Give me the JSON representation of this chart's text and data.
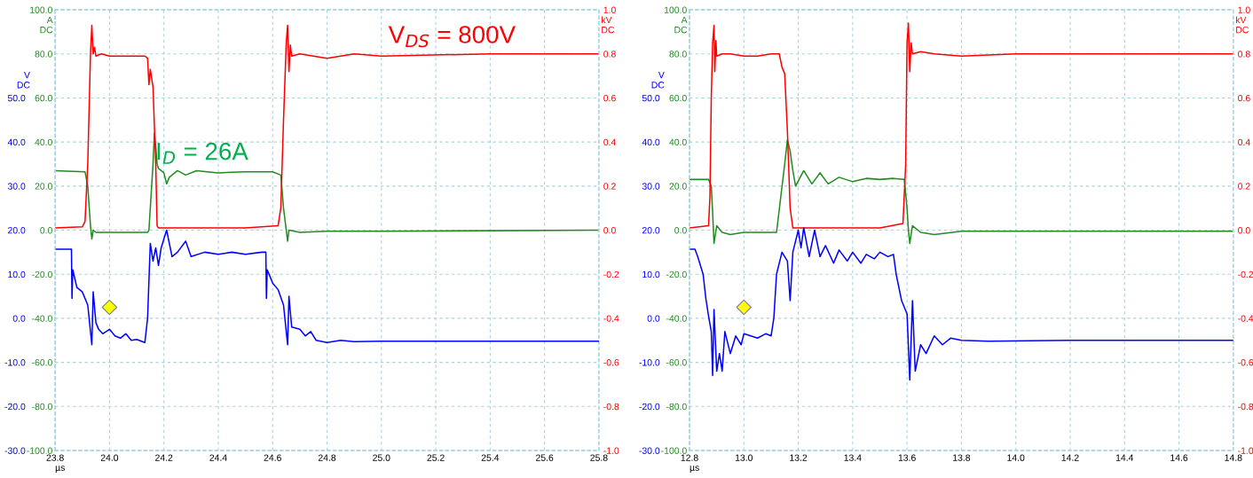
{
  "chart_data": [
    {
      "type": "line",
      "xlim": [
        23.8,
        25.8
      ],
      "xticks": [
        23.8,
        {
          "value": 24,
          "label": "24.0"
        },
        24.2,
        24.4,
        24.6,
        24.8,
        {
          "value": 25,
          "label": "25.0"
        },
        25.2,
        25.4,
        25.6,
        25.8
      ],
      "xlabel": "µs",
      "ylim": [
        -100,
        100
      ],
      "yticks": [
        {
          "value": -100,
          "label": "-100.0"
        },
        {
          "value": -80,
          "label": "-80.0"
        },
        {
          "value": -60,
          "label": "-60.0"
        },
        {
          "value": -40,
          "label": "-40.0"
        },
        {
          "value": -20,
          "label": "-20.0"
        },
        {
          "value": 0,
          "label": "0.0"
        },
        {
          "value": 20,
          "label": "20.0"
        },
        {
          "value": 40,
          "label": "40.0"
        },
        {
          "value": 60,
          "label": "60.0"
        },
        {
          "value": 80,
          "label": "80.0"
        },
        {
          "value": 100,
          "label": "100.0"
        }
      ],
      "ylabel": "A\nDC",
      "y2lim": [
        -1,
        1
      ],
      "y2ticks": [
        {
          "value": -1,
          "label": "-1.0"
        },
        -0.8,
        -0.6,
        -0.4,
        -0.2,
        {
          "value": 0,
          "label": "0.0"
        },
        0.2,
        0.4,
        0.6,
        0.8,
        {
          "value": 1,
          "label": "1.0"
        }
      ],
      "y2label": "kV\nDC",
      "y3lim": [
        -30,
        70
      ],
      "y3ticks": [
        {
          "value": -30,
          "label": "-30.0"
        },
        {
          "value": -20,
          "label": "-20.0"
        },
        {
          "value": -10,
          "label": "-10.0"
        },
        {
          "value": 0,
          "label": "0.0"
        },
        {
          "value": 10,
          "label": "10.0"
        },
        {
          "value": 20,
          "label": "20.0"
        },
        {
          "value": 30,
          "label": "30.0"
        },
        {
          "value": 40,
          "label": "40.0"
        },
        {
          "value": 50,
          "label": "50.0"
        }
      ],
      "y3label": "V\nDC",
      "grid": true,
      "legend": false,
      "annotations": [
        "V$_{DS}$ = 800V",
        "I$_{D}$ = 26A"
      ],
      "series": [
        {
          "color": "#ff0000",
          "axis": "y2",
          "x": [
            23.8,
            23.9,
            23.91,
            23.92,
            23.93,
            23.935,
            23.94,
            23.945,
            23.95,
            23.97,
            24.0,
            24.05,
            24.1,
            24.13,
            24.14,
            24.145,
            24.15,
            24.16,
            24.17,
            24.175,
            24.18,
            24.3,
            24.5,
            24.62,
            24.63,
            24.64,
            24.65,
            24.655,
            24.66,
            24.665,
            24.67,
            24.7,
            24.75,
            24.8,
            24.9,
            25.0,
            25.4,
            25.8
          ],
          "values": [
            0.01,
            0.015,
            0.04,
            0.3,
            0.8,
            0.93,
            0.8,
            0.83,
            0.79,
            0.8,
            0.79,
            0.79,
            0.79,
            0.79,
            0.78,
            0.66,
            0.73,
            0.65,
            0.3,
            0.02,
            0.01,
            0.01,
            0.01,
            0.02,
            0.1,
            0.5,
            0.85,
            0.93,
            0.72,
            0.84,
            0.79,
            0.8,
            0.79,
            0.78,
            0.8,
            0.79,
            0.8,
            0.8
          ]
        },
        {
          "color": "#228b22",
          "axis": "y",
          "x": [
            23.8,
            23.91,
            23.92,
            23.93,
            23.935,
            23.94,
            23.95,
            24.0,
            24.1,
            24.14,
            24.145,
            24.16,
            24.165,
            24.17,
            24.175,
            24.18,
            24.2,
            24.21,
            24.22,
            24.25,
            24.28,
            24.32,
            24.4,
            24.5,
            24.6,
            24.63,
            24.64,
            24.65,
            24.655,
            24.66,
            24.7,
            24.8,
            25.0,
            25.8
          ],
          "values": [
            27,
            26.5,
            20,
            2,
            -4,
            0,
            -1,
            -1,
            -1,
            -1,
            0,
            30,
            44,
            38,
            30,
            28,
            26,
            21,
            24,
            27,
            25,
            27,
            26,
            26.5,
            26.5,
            25,
            10,
            0,
            -5,
            0,
            -1,
            -0.5,
            -0.5,
            0
          ]
        },
        {
          "color": "#0000ff",
          "axis": "y3",
          "x": [
            23.8,
            23.86,
            23.862,
            23.865,
            23.88,
            23.9,
            23.92,
            23.935,
            23.94,
            23.95,
            23.96,
            23.975,
            24.0,
            24.02,
            24.04,
            24.06,
            24.08,
            24.1,
            24.13,
            24.14,
            24.15,
            24.16,
            24.17,
            24.18,
            24.19,
            24.21,
            24.23,
            24.25,
            24.28,
            24.3,
            24.35,
            24.4,
            24.45,
            24.5,
            24.56,
            24.575,
            24.577,
            24.58,
            24.6,
            24.62,
            24.64,
            24.655,
            24.66,
            24.67,
            24.7,
            24.72,
            24.74,
            24.76,
            24.8,
            24.85,
            24.9,
            25.0,
            25.4,
            25.8
          ],
          "values": [
            15.7,
            15.7,
            4.5,
            11,
            7,
            6,
            3,
            -6,
            6,
            -1,
            -2.5,
            -3.5,
            -2.5,
            -4,
            -4.5,
            -3.5,
            -5,
            -4.8,
            -5.5,
            0,
            17,
            13,
            16,
            12,
            16,
            20,
            14,
            15,
            17.5,
            14,
            15,
            14.5,
            15,
            14.5,
            15,
            15,
            4.5,
            11,
            8,
            6.5,
            3,
            -6,
            5,
            -2,
            -2.5,
            -4,
            -3,
            -5,
            -5.5,
            -5,
            -5.3,
            -5.2,
            -5.2,
            -5.2
          ]
        },
        {
          "type": "scatter",
          "marker": "diamond",
          "color": "#ffff00",
          "axis": "y3",
          "x": [
            24.0
          ],
          "values": [
            2.5
          ]
        }
      ]
    },
    {
      "type": "line",
      "xlim": [
        12.8,
        14.8
      ],
      "xticks": [
        12.8,
        {
          "value": 13,
          "label": "13.0"
        },
        13.2,
        13.4,
        13.6,
        13.8,
        {
          "value": 14,
          "label": "14.0"
        },
        14.2,
        14.4,
        14.6,
        14.8
      ],
      "xlabel": "µs",
      "ylim": [
        -100,
        100
      ],
      "yticks": [
        {
          "value": -100,
          "label": "-100.0"
        },
        {
          "value": -80,
          "label": "-80.0"
        },
        {
          "value": -60,
          "label": "-60.0"
        },
        {
          "value": -40,
          "label": "-40.0"
        },
        {
          "value": -20,
          "label": "-20.0"
        },
        {
          "value": 0,
          "label": "0.0"
        },
        {
          "value": 20,
          "label": "20.0"
        },
        {
          "value": 40,
          "label": "40.0"
        },
        {
          "value": 60,
          "label": "60.0"
        },
        {
          "value": 80,
          "label": "80.0"
        },
        {
          "value": 100,
          "label": "100.0"
        }
      ],
      "ylabel": "A\nDC",
      "y2lim": [
        -1,
        1
      ],
      "y2ticks": [
        {
          "value": -1,
          "label": "-1.0"
        },
        -0.8,
        -0.6,
        -0.4,
        -0.2,
        {
          "value": 0,
          "label": "0.0"
        },
        0.2,
        0.4,
        0.6,
        0.8,
        {
          "value": 1,
          "label": "1.0"
        }
      ],
      "y2label": "kV\nDC",
      "y3lim": [
        -30,
        70
      ],
      "y3ticks": [
        {
          "value": -30,
          "label": "-30.0"
        },
        {
          "value": -20,
          "label": "-20.0"
        },
        {
          "value": -10,
          "label": "-10.0"
        },
        {
          "value": 0,
          "label": "0.0"
        },
        {
          "value": 10,
          "label": "10.0"
        },
        {
          "value": 20,
          "label": "20.0"
        },
        {
          "value": 30,
          "label": "30.0"
        },
        {
          "value": 40,
          "label": "40.0"
        },
        {
          "value": 50,
          "label": "50.0"
        }
      ],
      "y3label": "V\nDC",
      "grid": true,
      "legend": false,
      "series": [
        {
          "color": "#ff0000",
          "axis": "y2",
          "x": [
            12.8,
            12.87,
            12.875,
            12.88,
            12.885,
            12.89,
            12.893,
            12.897,
            12.9,
            12.92,
            12.95,
            13.0,
            13.05,
            13.1,
            13.13,
            13.14,
            13.15,
            13.16,
            13.17,
            13.18,
            13.3,
            13.5,
            13.585,
            13.595,
            13.6,
            13.605,
            13.61,
            13.615,
            13.62,
            13.65,
            13.7,
            13.8,
            14.0,
            14.4,
            14.8
          ],
          "values": [
            0.01,
            0.02,
            0.15,
            0.6,
            0.85,
            0.93,
            0.72,
            0.86,
            0.79,
            0.8,
            0.8,
            0.79,
            0.79,
            0.8,
            0.8,
            0.74,
            0.71,
            0.45,
            0.1,
            0.01,
            0.01,
            0.01,
            0.03,
            0.3,
            0.85,
            0.94,
            0.72,
            0.85,
            0.8,
            0.81,
            0.8,
            0.79,
            0.8,
            0.8,
            0.8
          ]
        },
        {
          "color": "#228b22",
          "axis": "y",
          "x": [
            12.8,
            12.87,
            12.88,
            12.885,
            12.89,
            12.9,
            12.92,
            12.95,
            13.0,
            13.1,
            13.12,
            13.15,
            13.16,
            13.17,
            13.18,
            13.19,
            13.22,
            13.25,
            13.28,
            13.31,
            13.35,
            13.4,
            13.45,
            13.5,
            13.55,
            13.59,
            13.6,
            13.605,
            13.61,
            13.62,
            13.65,
            13.7,
            13.8,
            14.0,
            14.8
          ],
          "values": [
            23,
            23,
            20,
            8,
            -6,
            2,
            -1,
            -2,
            -1,
            -1,
            -1,
            30,
            41,
            36,
            27,
            20,
            27,
            21,
            26,
            21,
            24,
            22,
            23.5,
            23,
            23.5,
            23,
            10,
            0,
            -6,
            2,
            -1,
            -2,
            -0.5,
            -0.5,
            -0.5
          ]
        },
        {
          "color": "#0000ff",
          "axis": "y3",
          "x": [
            12.8,
            12.82,
            12.83,
            12.85,
            12.86,
            12.87,
            12.88,
            12.885,
            12.89,
            12.9,
            12.91,
            12.92,
            12.93,
            12.95,
            12.97,
            12.99,
            13.0,
            13.05,
            13.08,
            13.1,
            13.11,
            13.12,
            13.14,
            13.16,
            13.17,
            13.18,
            13.2,
            13.21,
            13.22,
            13.24,
            13.26,
            13.28,
            13.3,
            13.33,
            13.35,
            13.38,
            13.4,
            13.43,
            13.45,
            13.48,
            13.5,
            13.53,
            13.55,
            13.56,
            13.58,
            13.6,
            13.61,
            13.62,
            13.63,
            13.65,
            13.67,
            13.7,
            13.73,
            13.76,
            13.8,
            13.9,
            14.2,
            14.8
          ],
          "values": [
            15.7,
            15.7,
            14,
            10,
            4.5,
            0.5,
            -3,
            -13,
            2,
            -12,
            -8,
            -12,
            -3,
            -8,
            -4,
            -6,
            -3.5,
            -4.5,
            -3.5,
            -4,
            0,
            10,
            15,
            13,
            4,
            15,
            20,
            16,
            20.5,
            14,
            20,
            14,
            16.5,
            12.5,
            15.5,
            13,
            15,
            12.5,
            14.5,
            13.5,
            15,
            14,
            14.5,
            10,
            4,
            1,
            -14,
            4,
            -12,
            -6,
            -8,
            -4,
            -6,
            -4.5,
            -5,
            -5.2,
            -5,
            -5
          ]
        },
        {
          "type": "scatter",
          "marker": "diamond",
          "color": "#ffff00",
          "axis": "y3",
          "x": [
            13.0
          ],
          "values": [
            2.5
          ]
        }
      ]
    }
  ]
}
